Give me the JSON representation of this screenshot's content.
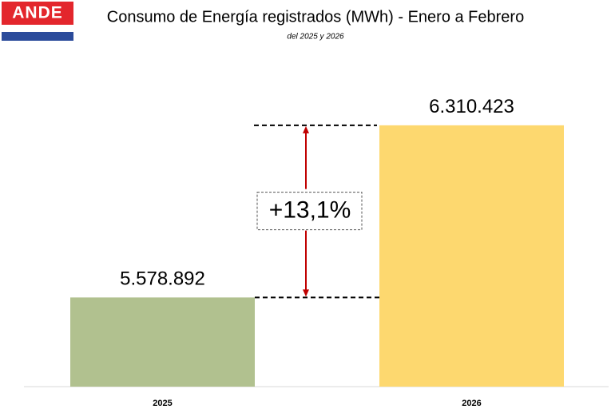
{
  "header": {
    "logo": "ANDE"
  },
  "chart_data": {
    "type": "bar",
    "title": "Consumo de Energía registrados (MWh) - Enero a Febrero",
    "subtitle": "del 2025 y 2026",
    "categories": [
      "2025",
      "2026"
    ],
    "values": [
      5578892,
      6310423
    ],
    "value_labels": [
      "5.578.892",
      "6.310.423"
    ],
    "colors": [
      "#b1c18f",
      "#fdd86f"
    ],
    "ylim": [
      5200000,
      6500000
    ],
    "annotation": "+13,1%",
    "annotation_color": "#c00000"
  }
}
